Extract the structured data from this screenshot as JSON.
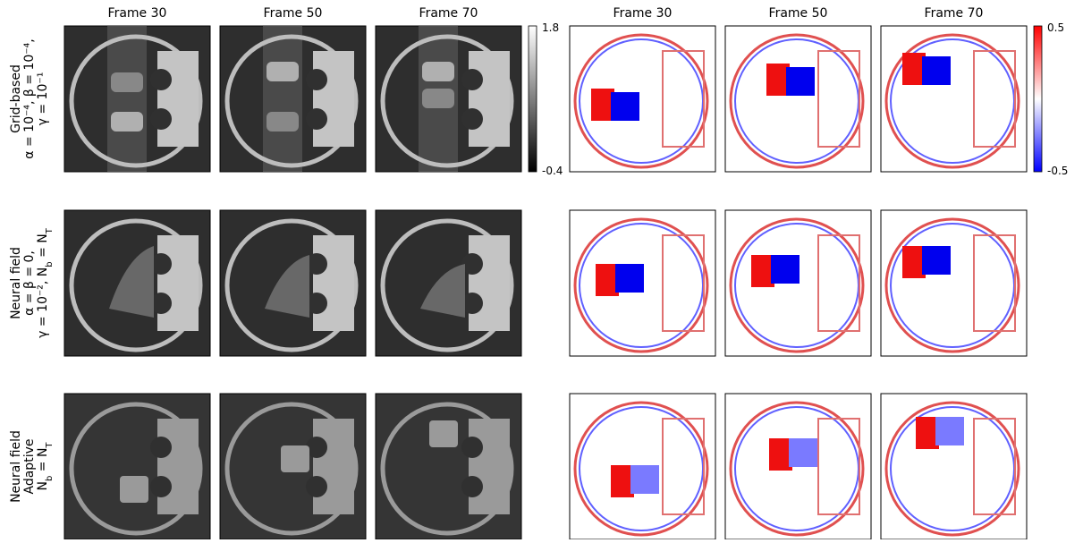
{
  "left_titles": [
    "Frame 30",
    "Frame 50",
    "Frame 70"
  ],
  "right_titles": [
    "Frame 30",
    "Frame 50",
    "Frame 70"
  ],
  "row_labels": [
    [
      "Grid-based",
      "α = 10⁻⁴, β = 10⁻⁴,",
      "γ = 10⁻¹"
    ],
    [
      "Neural field",
      "α = β = 0,",
      "γ = 10⁻², N_b = N_T"
    ],
    [
      "Neural field",
      "Adaptive",
      "N_b = N_T"
    ]
  ],
  "colorbar_gray": {
    "max": 1.8,
    "min": -0.4
  },
  "colorbar_diff": {
    "max": 0.5,
    "min": -0.5
  }
}
